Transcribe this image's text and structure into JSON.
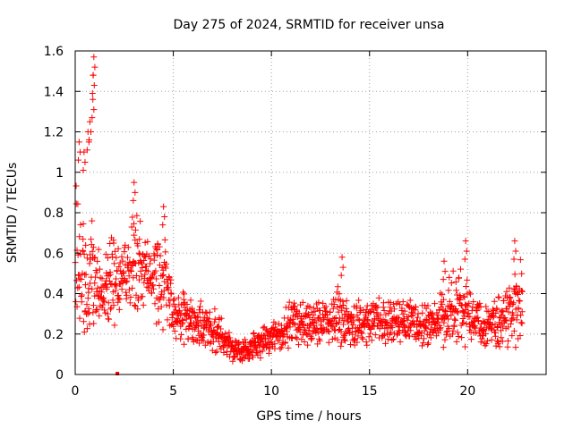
{
  "chart_data": {
    "type": "scatter",
    "title": "Day 275 of 2024, SRMTID for receiver unsa",
    "xlabel": "GPS time / hours",
    "ylabel": "SRMTID / TECUs",
    "xlim": [
      0,
      24
    ],
    "ylim": [
      0,
      1.6
    ],
    "xticks": [
      "0",
      "5",
      "10",
      "15",
      "20"
    ],
    "yticks": [
      "0",
      "0.2",
      "0.4",
      "0.6",
      "0.8",
      "1",
      "1.2",
      "1.4",
      "1.6"
    ],
    "grid": true,
    "marker_color": "#ff0000",
    "series": [
      {
        "name": "SRMTID",
        "trend_x": [
          0,
          0.2,
          0.5,
          0.8,
          1,
          1.3,
          1.6,
          2,
          2.4,
          2.8,
          3.1,
          3.5,
          3.9,
          4.3,
          4.6,
          5,
          5.5,
          6,
          6.5,
          7,
          7.5,
          8,
          8.5,
          9,
          9.5,
          10,
          10.5,
          11,
          11.5,
          12,
          12.5,
          13,
          13.5,
          14,
          14.5,
          15,
          15.5,
          16,
          16.5,
          17,
          17.5,
          18,
          18.5,
          19,
          19.5,
          20,
          20.5,
          21,
          21.5,
          22,
          22.5,
          22.8
        ],
        "trend_y": [
          0.6,
          0.5,
          0.45,
          0.5,
          0.45,
          0.4,
          0.42,
          0.45,
          0.48,
          0.52,
          0.58,
          0.55,
          0.5,
          0.45,
          0.5,
          0.3,
          0.28,
          0.27,
          0.25,
          0.22,
          0.2,
          0.12,
          0.11,
          0.13,
          0.16,
          0.18,
          0.2,
          0.25,
          0.26,
          0.27,
          0.26,
          0.27,
          0.3,
          0.25,
          0.25,
          0.26,
          0.28,
          0.26,
          0.26,
          0.27,
          0.26,
          0.25,
          0.28,
          0.3,
          0.32,
          0.3,
          0.26,
          0.24,
          0.26,
          0.3,
          0.35,
          0.38
        ],
        "spread": [
          0.45,
          0.45,
          0.35,
          0.35,
          0.25,
          0.2,
          0.25,
          0.25,
          0.25,
          0.3,
          0.3,
          0.25,
          0.2,
          0.25,
          0.3,
          0.15,
          0.15,
          0.12,
          0.12,
          0.12,
          0.1,
          0.07,
          0.06,
          0.07,
          0.08,
          0.08,
          0.1,
          0.13,
          0.13,
          0.12,
          0.12,
          0.12,
          0.2,
          0.12,
          0.12,
          0.12,
          0.13,
          0.12,
          0.12,
          0.12,
          0.12,
          0.12,
          0.15,
          0.2,
          0.22,
          0.2,
          0.12,
          0.12,
          0.13,
          0.2,
          0.25,
          0.22
        ],
        "peaks": [
          {
            "x": 0.95,
            "y": 1.57
          },
          {
            "x": 0.92,
            "y": 1.48
          },
          {
            "x": 0.9,
            "y": 1.36
          },
          {
            "x": 0.75,
            "y": 1.25
          },
          {
            "x": 0.65,
            "y": 1.2
          },
          {
            "x": 0.2,
            "y": 1.15
          },
          {
            "x": 0.45,
            "y": 1.1
          },
          {
            "x": 3.0,
            "y": 0.95
          },
          {
            "x": 4.5,
            "y": 0.83
          },
          {
            "x": 13.6,
            "y": 0.58
          },
          {
            "x": 18.8,
            "y": 0.56
          },
          {
            "x": 19.9,
            "y": 0.66
          },
          {
            "x": 22.4,
            "y": 0.66
          }
        ],
        "outliers": [
          {
            "x": 2.15,
            "y": 0.0
          }
        ]
      }
    ]
  }
}
